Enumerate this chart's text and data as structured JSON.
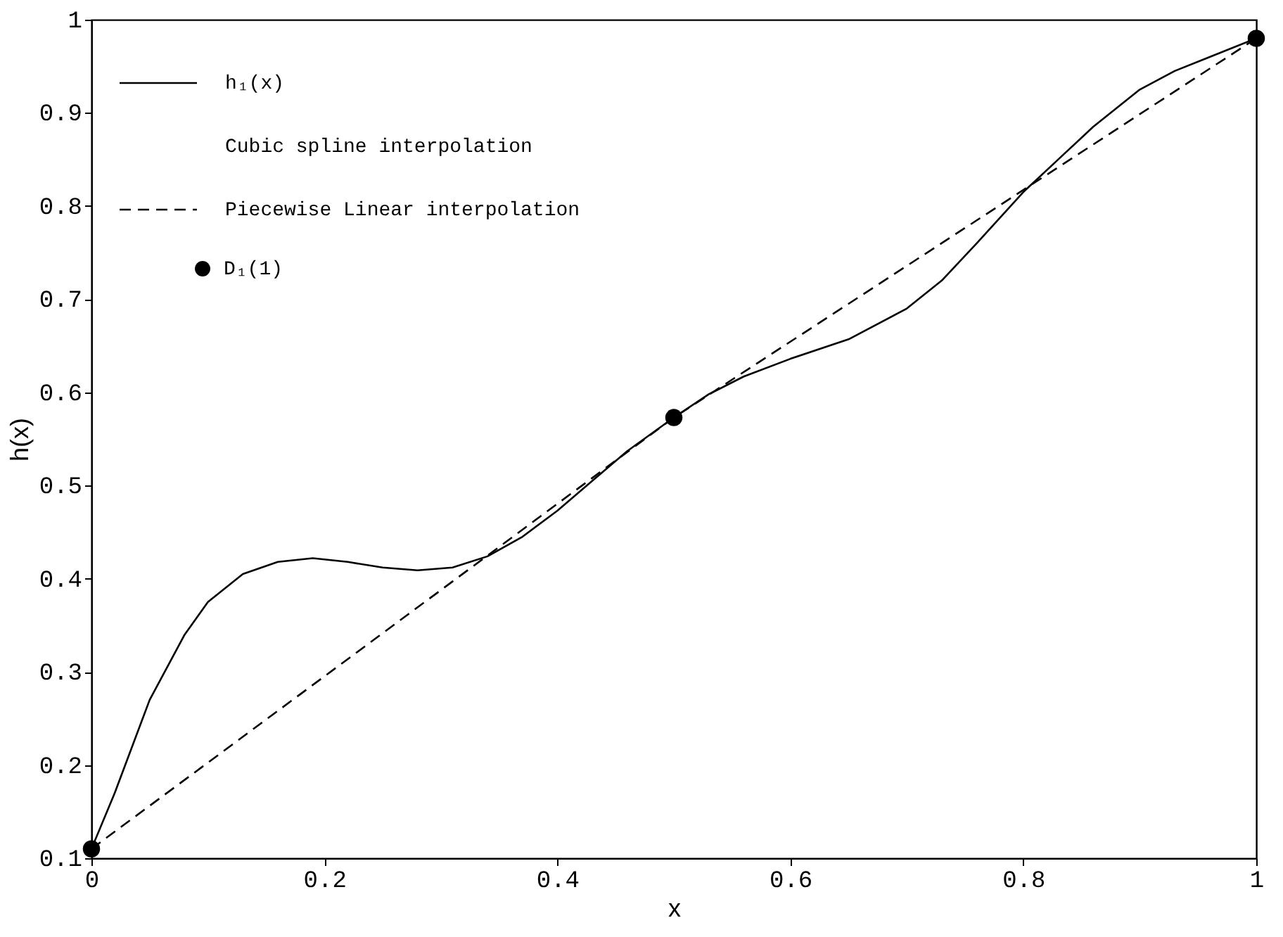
{
  "chart_data": {
    "type": "line",
    "xlabel": "x",
    "ylabel": "h(x)",
    "xlim": [
      0,
      1
    ],
    "xticks": [
      0,
      0.2,
      0.4,
      0.6,
      0.8,
      1
    ],
    "ylim": [
      0.1,
      1
    ],
    "yticks": [
      0.1,
      0.2,
      0.3,
      0.4,
      0.5,
      0.6,
      0.7,
      0.8,
      0.9,
      1
    ],
    "grid": false,
    "legend": "top left",
    "series": [
      {
        "name": "h₁(x)\nCubic spline interpolation",
        "line_style": "solid",
        "marker": "none",
        "color": "#000000",
        "x": [
          0,
          0.02,
          0.05,
          0.08,
          0.1,
          0.13,
          0.16,
          0.19,
          0.22,
          0.25,
          0.28,
          0.31,
          0.34,
          0.37,
          0.4,
          0.43,
          0.46,
          0.5,
          0.53,
          0.56,
          0.6,
          0.65,
          0.7,
          0.73,
          0.76,
          0.8,
          0.83,
          0.86,
          0.9,
          0.93,
          0.96,
          1
        ],
        "values": [
          0.11,
          0.17,
          0.27,
          0.34,
          0.375,
          0.405,
          0.418,
          0.422,
          0.418,
          0.412,
          0.409,
          0.412,
          0.424,
          0.445,
          0.473,
          0.505,
          0.537,
          0.573,
          0.598,
          0.617,
          0.636,
          0.657,
          0.69,
          0.72,
          0.76,
          0.815,
          0.85,
          0.885,
          0.925,
          0.945,
          0.96,
          0.98
        ]
      },
      {
        "name": "Piecewise Linear interpolation",
        "line_style": "dashed",
        "marker": "none",
        "color": "#000000",
        "x": [
          0,
          0.5,
          1
        ],
        "values": [
          0.11,
          0.573,
          0.98
        ]
      },
      {
        "name": "D₁(1)",
        "type": "scatter",
        "marker": "circle",
        "color": "#000000",
        "x": [
          0,
          0.5,
          1
        ],
        "values": [
          0.11,
          0.573,
          0.98
        ]
      }
    ]
  }
}
